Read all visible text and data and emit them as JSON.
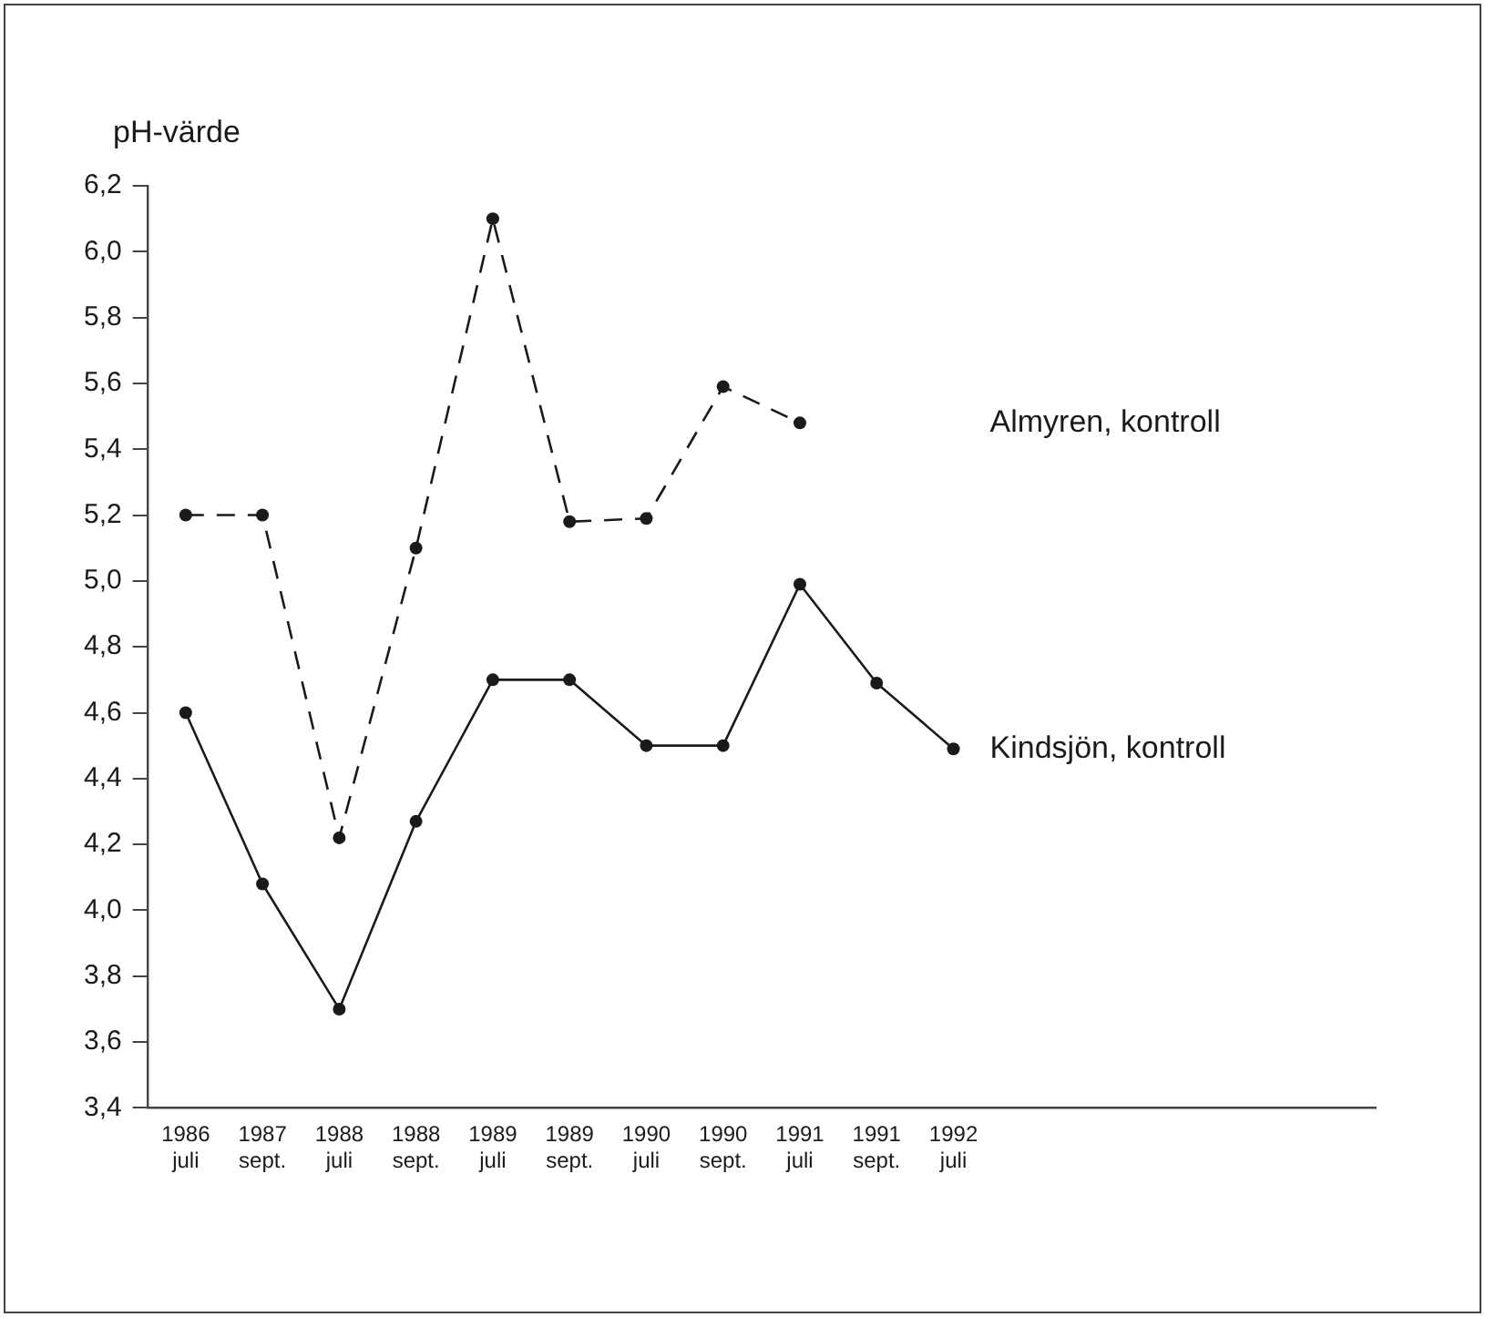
{
  "chart_data": {
    "type": "line",
    "ylabel": "pH-värde",
    "categories": [
      "1986 juli",
      "1987 sept.",
      "1988 juli",
      "1988 sept.",
      "1989 juli",
      "1989 sept.",
      "1990 juli",
      "1990 sept.",
      "1991 juli",
      "1991 sept.",
      "1992 juli"
    ],
    "series": [
      {
        "name": "Almyren, kontroll",
        "color": "#1a1a1a",
        "line_style": "dashed",
        "values": [
          5.2,
          5.2,
          4.22,
          5.1,
          6.1,
          5.18,
          5.19,
          5.59,
          5.48,
          null,
          null
        ]
      },
      {
        "name": "Kindsjön, kontroll",
        "color": "#1a1a1a",
        "line_style": "solid",
        "values": [
          4.6,
          4.08,
          3.7,
          4.27,
          4.7,
          4.7,
          4.5,
          4.5,
          4.99,
          4.69,
          4.49
        ]
      }
    ],
    "ylim": [
      3.4,
      6.2
    ],
    "yticks": [
      {
        "value": 3.4,
        "label": "3,4"
      },
      {
        "value": 3.6,
        "label": "3,6"
      },
      {
        "value": 3.8,
        "label": "3,8"
      },
      {
        "value": 4.0,
        "label": "4,0"
      },
      {
        "value": 4.2,
        "label": "4,2"
      },
      {
        "value": 4.4,
        "label": "4,4"
      },
      {
        "value": 4.6,
        "label": "4,6"
      },
      {
        "value": 4.8,
        "label": "4,8"
      },
      {
        "value": 5.0,
        "label": "5,0"
      },
      {
        "value": 5.2,
        "label": "5,2"
      },
      {
        "value": 5.4,
        "label": "5,4"
      },
      {
        "value": 5.6,
        "label": "5,6"
      },
      {
        "value": 5.8,
        "label": "5,8"
      },
      {
        "value": 6.0,
        "label": "6,0"
      },
      {
        "value": 6.2,
        "label": "6,2"
      }
    ],
    "grid": false,
    "legend": false,
    "marker": "circle"
  }
}
